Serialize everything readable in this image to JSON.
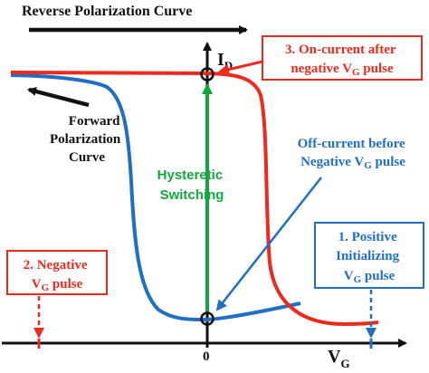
{
  "colors": {
    "red": "#ee2a1e",
    "blue": "#1f6fc4",
    "green": "#14a83c",
    "black": "#111111"
  },
  "labels": {
    "reverse_curve": "Reverse Polarization Curve",
    "forward_curve": [
      "Forward",
      "Polarization",
      "Curve"
    ],
    "id_axis": {
      "main": "I",
      "sub": "D"
    },
    "vg_axis": {
      "main": "V",
      "sub": "G"
    },
    "origin": "0",
    "hysteretic": [
      "Hysteretic",
      "Switching"
    ],
    "on_current_box": {
      "line1": "3. On-current after",
      "line2_pre": "negative V",
      "line2_sub": "G",
      "line2_post": " pulse"
    },
    "off_current": {
      "line1": "Off-current before",
      "line2_pre": "Negative V",
      "line2_sub": "G",
      "line2_post": " pulse"
    },
    "negative_box": {
      "line1": "2. Negative",
      "line2_pre": "V",
      "line2_sub": "G",
      "line2_post": " pulse"
    },
    "positive_box": {
      "line1": "1. Positive",
      "line2": "Initializing",
      "line3_pre": "V",
      "line3_sub": "G",
      "line3_post": " pulse"
    }
  }
}
